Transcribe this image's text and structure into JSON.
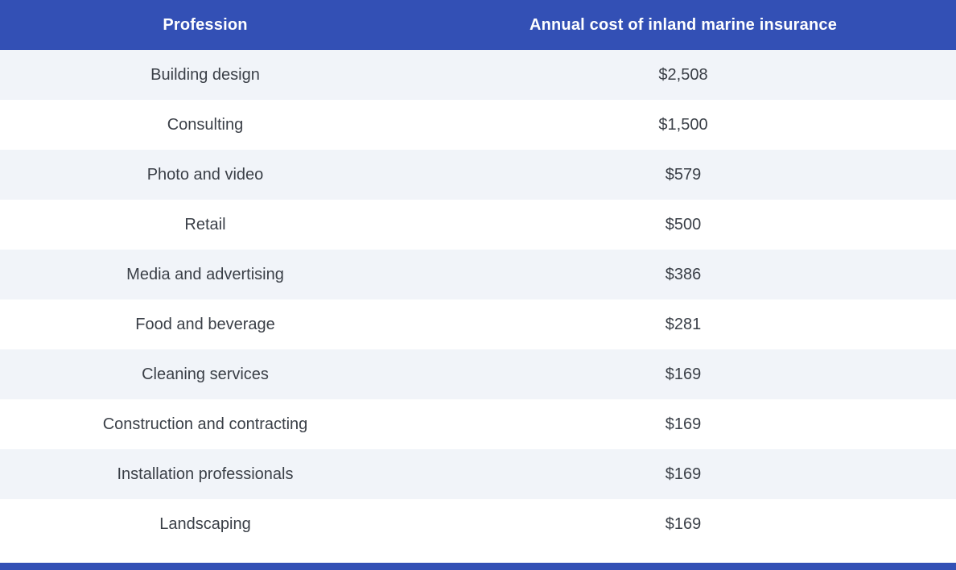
{
  "colors": {
    "header_bg": "#3350b5",
    "header_text": "#ffffff",
    "row_alt_bg": "#f1f4f9",
    "row_bg": "#ffffff",
    "body_text": "#3a3f47"
  },
  "table": {
    "headers": {
      "profession": "Profession",
      "cost": "Annual cost of inland marine insurance"
    },
    "rows": [
      {
        "profession": "Building design",
        "cost": "$2,508"
      },
      {
        "profession": "Consulting",
        "cost": "$1,500"
      },
      {
        "profession": "Photo and video",
        "cost": "$579"
      },
      {
        "profession": "Retail",
        "cost": "$500"
      },
      {
        "profession": "Media and advertising",
        "cost": "$386"
      },
      {
        "profession": "Food and beverage",
        "cost": "$281"
      },
      {
        "profession": "Cleaning services",
        "cost": "$169"
      },
      {
        "profession": "Construction and contracting",
        "cost": "$169"
      },
      {
        "profession": "Installation professionals",
        "cost": "$169"
      },
      {
        "profession": "Landscaping",
        "cost": "$169"
      }
    ]
  },
  "chart_data": {
    "type": "table",
    "title": "",
    "columns": [
      "Profession",
      "Annual cost of inland marine insurance"
    ],
    "categories": [
      "Building design",
      "Consulting",
      "Photo and video",
      "Retail",
      "Media and advertising",
      "Food and beverage",
      "Cleaning services",
      "Construction and contracting",
      "Installation professionals",
      "Landscaping"
    ],
    "values": [
      2508,
      1500,
      579,
      500,
      386,
      281,
      169,
      169,
      169,
      169
    ],
    "value_format": "USD annual cost"
  }
}
